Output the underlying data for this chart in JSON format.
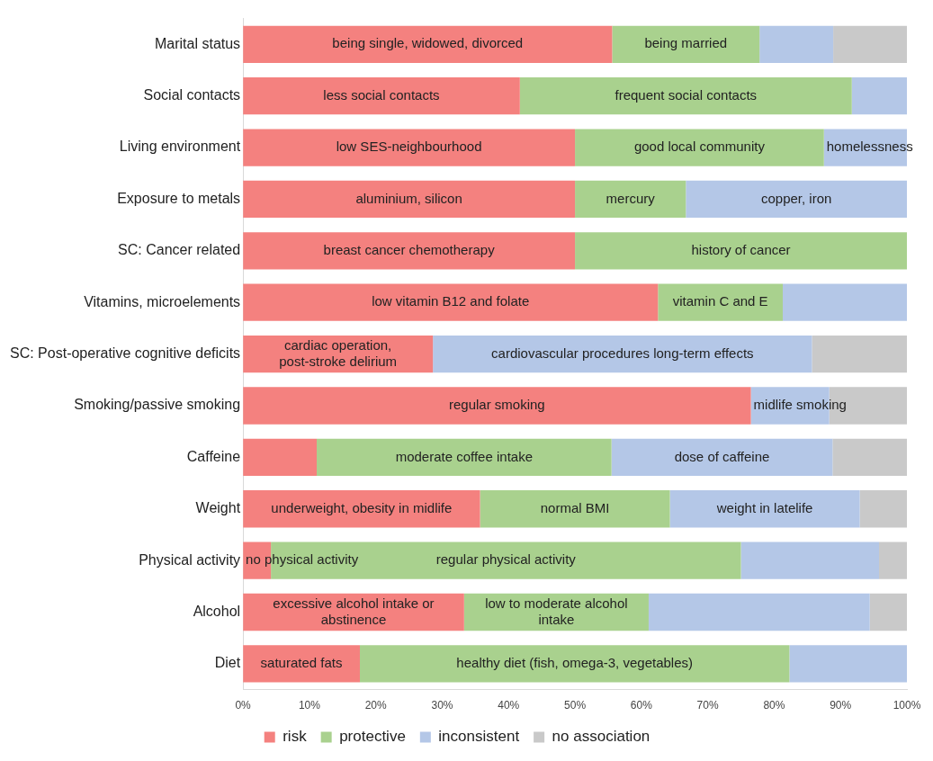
{
  "chart_data": {
    "type": "bar",
    "orientation": "horizontal",
    "stacked": true,
    "categories": [
      "Marital status",
      "Social contacts",
      "Living environment",
      "Exposure to metals",
      "SC: Cancer related",
      "Vitamins, microelements",
      "SC: Post-operative cognitive deficits",
      "Smoking/passive smoking",
      "Caffeine",
      "Weight",
      "Physical activity",
      "Alcohol",
      "Diet"
    ],
    "series": [
      {
        "name": "risk",
        "color": "#f4817f",
        "values": [
          55.6,
          41.7,
          50,
          50,
          50,
          62.5,
          28.6,
          76.5,
          11.1,
          35.7,
          4.2,
          33.3,
          17.6
        ],
        "value_labels": [
          "being single, widowed, divorced",
          "less social contacts",
          "low SES-neighbourhood",
          "aluminium, silicon",
          "breast cancer chemotherapy",
          "low vitamin B12 and folate",
          "cardiac operation,\npost-stroke delirium",
          "regular smoking",
          null,
          "underweight, obesity in midlife",
          "no physical activity",
          "excessive alcohol intake or\nabstinence",
          "saturated fats"
        ]
      },
      {
        "name": "protective",
        "color": "#a9d18e",
        "values": [
          22.2,
          50,
          37.5,
          16.7,
          50,
          18.8,
          0,
          0,
          44.4,
          28.6,
          70.8,
          27.8,
          64.7
        ],
        "value_labels": [
          "being married",
          "frequent social contacts",
          "good local community",
          "mercury",
          "history of cancer",
          "vitamin C and E",
          null,
          null,
          "moderate coffee intake",
          "normal BMI",
          "regular physical activity",
          "low to moderate alcohol\nintake",
          "healthy diet (fish, omega-3, vegetables)"
        ]
      },
      {
        "name": "inconsistent",
        "color": "#b4c7e7",
        "values": [
          11.1,
          8.3,
          12.5,
          33.3,
          0,
          18.7,
          57.1,
          11.8,
          33.3,
          28.6,
          20.8,
          33.3,
          17.7
        ],
        "value_labels": [
          null,
          null,
          "homelessness",
          "copper, iron",
          null,
          null,
          "cardiovascular procedures long-term effects",
          "midlife smoking",
          "dose of caffeine",
          "weight in latelife",
          null,
          null,
          null
        ]
      },
      {
        "name": "no association",
        "color": "#c9c9c9",
        "values": [
          11.1,
          0,
          0,
          0,
          0,
          0,
          14.3,
          11.7,
          11.2,
          7.1,
          4.2,
          5.6,
          0
        ]
      }
    ],
    "xlim": [
      0,
      100
    ],
    "xticks": [
      {
        "value": 0,
        "label": "0%"
      },
      {
        "value": 10,
        "label": "10%"
      },
      {
        "value": 20,
        "label": "20%"
      },
      {
        "value": 30,
        "label": "30%"
      },
      {
        "value": 40,
        "label": "40%"
      },
      {
        "value": 50,
        "label": "50%"
      },
      {
        "value": 60,
        "label": "60%"
      },
      {
        "value": 70,
        "label": "70%"
      },
      {
        "value": 80,
        "label": "80%"
      },
      {
        "value": 90,
        "label": "90%"
      },
      {
        "value": 100,
        "label": "100%"
      }
    ],
    "grid": false,
    "legend": "bottom"
  }
}
